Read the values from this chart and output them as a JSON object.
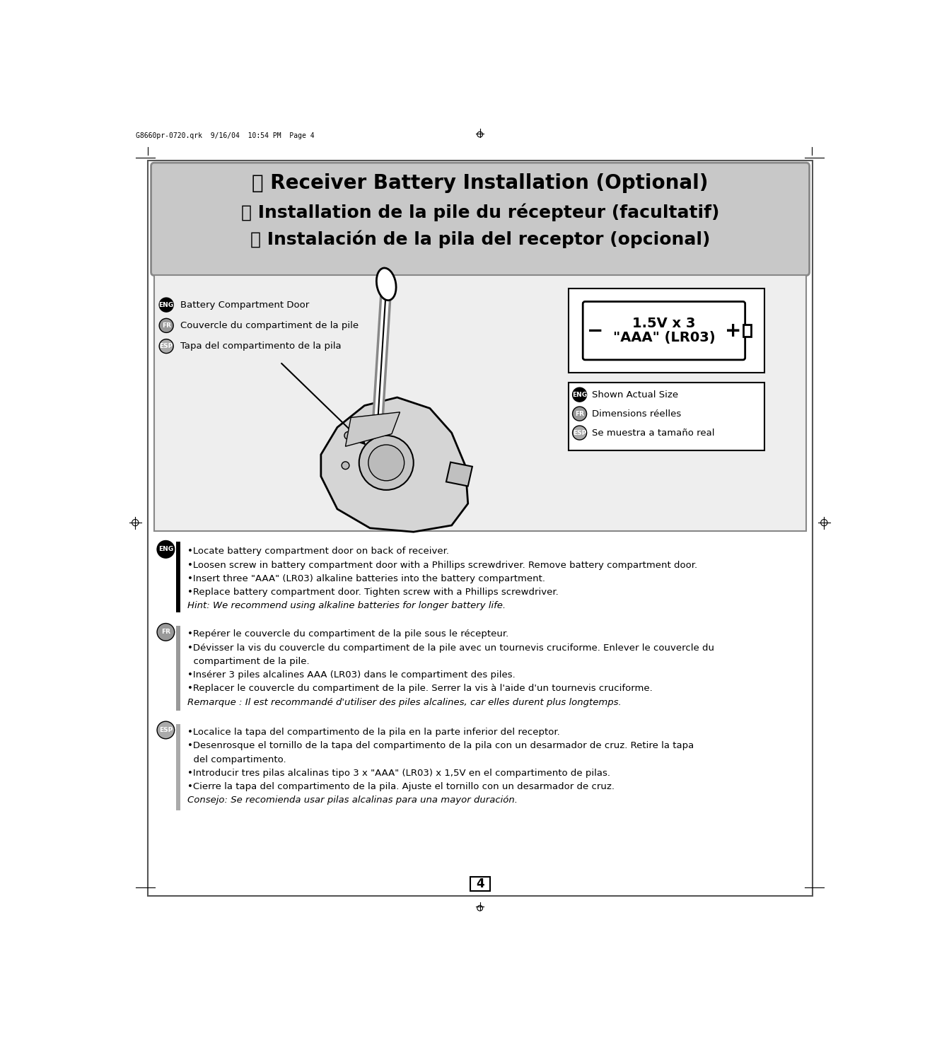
{
  "bg_color": "#ffffff",
  "header_bg": "#c8c8c8",
  "header_title_eng": "ⓔ Receiver Battery Installation (Optional)",
  "header_title_fr": "ⓕ Installation de la pile du récepteur (facultatif)",
  "header_title_esp": "ⓘ Instalación de la pila del receptor (opcional)",
  "label_eng": "Battery Compartment Door",
  "label_fr": "Couvercle du compartiment de la pile",
  "label_esp": "Tapa del compartimento de la pila",
  "battery_label_line1": "1.5V x 3",
  "battery_label_line2": "\"AAA\" (LR03)",
  "shown_eng": "Shown Actual Size",
  "shown_fr": "Dimensions réelles",
  "shown_esp": "Se muestra a tamaño real",
  "eng_bullets": [
    "•Locate battery compartment door on back of receiver.",
    "•Loosen screw in battery compartment door with a Phillips screwdriver. Remove battery compartment door.",
    "•Insert three \"AAA\" (LR03) alkaline batteries into the battery compartment.",
    "•Replace battery compartment door. Tighten screw with a Phillips screwdriver.",
    "Hint: We recommend using alkaline batteries for longer battery life."
  ],
  "fr_bullets": [
    "•Repérer le couvercle du compartiment de la pile sous le récepteur.",
    "•Dévisser la vis du couvercle du compartiment de la pile avec un tournevis cruciforme. Enlever le couvercle du",
    "  compartiment de la pile.",
    "•Insérer 3 piles alcalines AAA (LR03) dans le compartiment des piles.",
    "•Replacer le couvercle du compartiment de la pile. Serrer la vis à l'aide d'un tournevis cruciforme.",
    "Remarque : Il est recommandé d'utiliser des piles alcalines, car elles durent plus longtemps."
  ],
  "esp_bullets": [
    "•Localice la tapa del compartimento de la pila en la parte inferior del receptor.",
    "•Desenrosque el tornillo de la tapa del compartimento de la pila con un desarmador de cruz. Retire la tapa",
    "  del compartimento.",
    "•Introducir tres pilas alcalinas tipo 3 x \"AAA\" (LR03) x 1,5V en el compartimento de pilas.",
    "•Cierre la tapa del compartimento de la pila. Ajuste el tornillo con un desarmador de cruz.",
    "Consejo: Se recomienda usar pilas alcalinas para una mayor duración."
  ],
  "page_number": "4",
  "file_info": "G8660pr-0720.qrk  9/16/04  10:54 PM  Page 4"
}
